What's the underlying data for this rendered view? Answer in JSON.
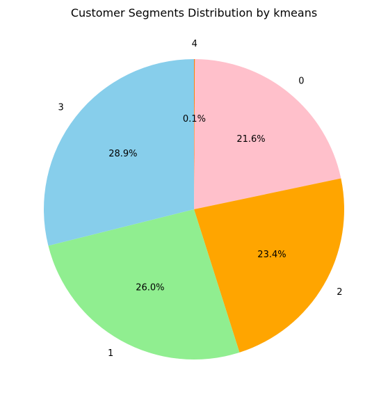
{
  "chart_data": {
    "type": "pie",
    "title": "Customer Segments Distribution by kmeans",
    "start_angle_deg": 90,
    "direction": "clockwise",
    "legend": "none",
    "slices": [
      {
        "label": "4",
        "value": 0.1,
        "pct_label": "0.1%",
        "color": "#ff7f0e"
      },
      {
        "label": "0",
        "value": 21.6,
        "pct_label": "21.6%",
        "color": "#ffc0cb"
      },
      {
        "label": "2",
        "value": 23.4,
        "pct_label": "23.4%",
        "color": "#ffa500"
      },
      {
        "label": "1",
        "value": 26.0,
        "pct_label": "26.0%",
        "color": "#90ee90"
      },
      {
        "label": "3",
        "value": 28.9,
        "pct_label": "28.9%",
        "color": "#87ceeb"
      }
    ]
  }
}
